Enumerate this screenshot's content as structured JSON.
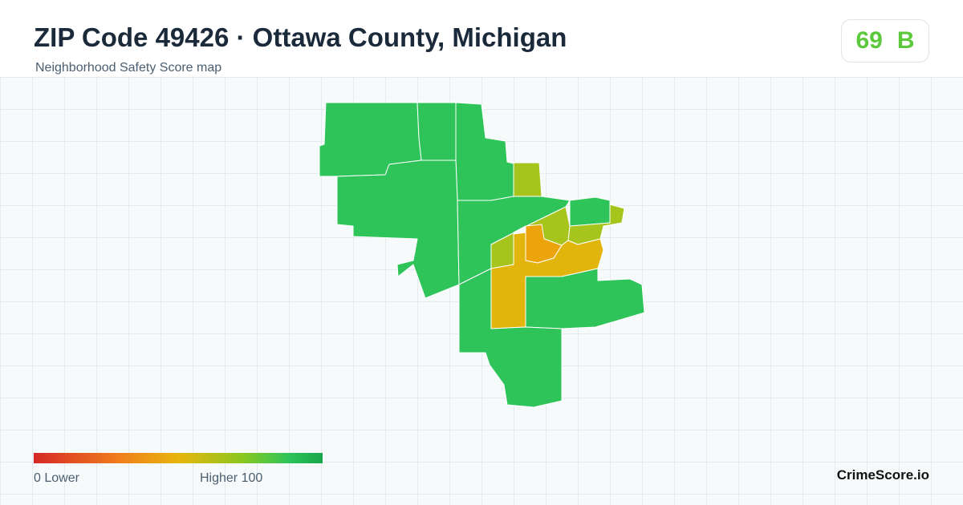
{
  "header": {
    "title": "ZIP Code 49426 · Ottawa County, Michigan",
    "subtitle": "Neighborhood Safety Score map"
  },
  "score": {
    "value": "69",
    "grade": "B",
    "color": "#5cc83b"
  },
  "legend": {
    "min_label": "0  Lower",
    "max_label": "Higher  100"
  },
  "brand": "CrimeScore.io",
  "colors": {
    "high": "#2ec45a",
    "mid_high": "#a6c41c",
    "mid": "#e2b50c",
    "low_mid": "#eda40a"
  },
  "regions": [
    {
      "name": "northwest",
      "level": "high"
    },
    {
      "name": "north-central",
      "level": "high"
    },
    {
      "name": "northeast-strip",
      "level": "high"
    },
    {
      "name": "west-central",
      "level": "high"
    },
    {
      "name": "west-arm",
      "level": "high"
    },
    {
      "name": "central-west",
      "level": "high"
    },
    {
      "name": "small-north-east",
      "level": "mid_high"
    },
    {
      "name": "east-top",
      "level": "high"
    },
    {
      "name": "east-yellow",
      "level": "mid_high"
    },
    {
      "name": "center-diagonal",
      "level": "mid_high"
    },
    {
      "name": "center-orange",
      "level": "low_mid"
    },
    {
      "name": "south-yellow",
      "level": "mid"
    },
    {
      "name": "southeast",
      "level": "high"
    },
    {
      "name": "south",
      "level": "high"
    }
  ]
}
